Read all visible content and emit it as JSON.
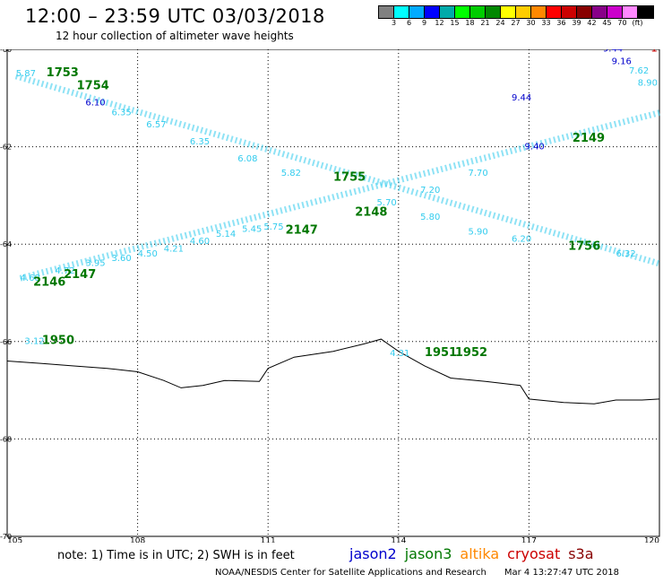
{
  "header": {
    "title": "12:00 – 23:59 UTC 03/03/2018",
    "subtitle": "12 hour collection of altimeter wave heights"
  },
  "legend": {
    "colors": [
      "#808080",
      "#00ffff",
      "#00aaff",
      "#0000ff",
      "#00aaaa",
      "#00ff00",
      "#00cc00",
      "#008800",
      "#ffff00",
      "#ffcc00",
      "#ff8800",
      "#ff0000",
      "#cc0000",
      "#880000",
      "#880088",
      "#cc00cc",
      "#ff88ff",
      "#000000"
    ],
    "labels": [
      "3",
      "6",
      "9",
      "12",
      "15",
      "18",
      "21",
      "24",
      "27",
      "30",
      "33",
      "36",
      "39",
      "42",
      "45",
      "70",
      "(ft)"
    ]
  },
  "map": {
    "lon_range": [
      105,
      120
    ],
    "lat_range": [
      -70,
      -60
    ],
    "x_ticks": [
      "105",
      "108",
      "111",
      "114",
      "117",
      "120"
    ],
    "y_ticks": [
      "-60",
      "-62",
      "-64",
      "-66",
      "-68",
      "-70"
    ],
    "grid": "dotted",
    "colors": {
      "cyan": "#33ccee",
      "green": "#007700",
      "blue": "#0000cc",
      "red": "#cc0000"
    },
    "coast": [
      [
        105,
        -66.4
      ],
      [
        105.8,
        -66.45
      ],
      [
        106.5,
        -66.5
      ],
      [
        107.3,
        -66.55
      ],
      [
        108,
        -66.62
      ],
      [
        108.6,
        -66.8
      ],
      [
        109,
        -66.95
      ],
      [
        109.5,
        -66.9
      ],
      [
        110,
        -66.8
      ],
      [
        110.8,
        -66.82
      ],
      [
        111,
        -66.55
      ],
      [
        111.6,
        -66.32
      ],
      [
        112.5,
        -66.2
      ],
      [
        113.2,
        -66.05
      ],
      [
        113.6,
        -65.95
      ],
      [
        114,
        -66.2
      ],
      [
        114.6,
        -66.5
      ],
      [
        115.2,
        -66.75
      ],
      [
        116,
        -66.82
      ],
      [
        116.8,
        -66.9
      ],
      [
        117,
        -67.18
      ],
      [
        117.8,
        -67.25
      ],
      [
        118.5,
        -67.28
      ],
      [
        119,
        -67.2
      ],
      [
        119.6,
        -67.2
      ],
      [
        120,
        -67.18
      ]
    ],
    "tracks": [
      {
        "color": "cyan",
        "from": [
          105.2,
          -60.55
        ],
        "to": [
          120,
          -64.4
        ]
      },
      {
        "color": "cyan",
        "from": [
          105.3,
          -64.7
        ],
        "to": [
          120,
          -61.3
        ]
      }
    ],
    "labels": [
      {
        "text": "5.87",
        "lon": 105.2,
        "lat": -60.55,
        "color": "cyan",
        "size": 10
      },
      {
        "text": "1753",
        "lon": 105.9,
        "lat": -60.55,
        "color": "green",
        "size": 13
      },
      {
        "text": "1754",
        "lon": 106.6,
        "lat": -60.82,
        "color": "green",
        "size": 13
      },
      {
        "text": "9.44",
        "lon": 116.6,
        "lat": -61.05,
        "color": "blue",
        "size": 10
      },
      {
        "text": "6.10",
        "lon": 106.8,
        "lat": -61.15,
        "color": "blue",
        "size": 10
      },
      {
        "text": "6.35",
        "lon": 107.4,
        "lat": -61.35,
        "color": "cyan",
        "size": 10
      },
      {
        "text": "6.57",
        "lon": 108.2,
        "lat": -61.6,
        "color": "cyan",
        "size": 10
      },
      {
        "text": "6.35",
        "lon": 109.2,
        "lat": -61.95,
        "color": "cyan",
        "size": 10
      },
      {
        "text": "6.08",
        "lon": 110.3,
        "lat": -62.3,
        "color": "cyan",
        "size": 10
      },
      {
        "text": "5.82",
        "lon": 111.3,
        "lat": -62.6,
        "color": "cyan",
        "size": 10
      },
      {
        "text": "1755",
        "lon": 112.5,
        "lat": -62.7,
        "color": "green",
        "size": 13
      },
      {
        "text": "5.70",
        "lon": 113.5,
        "lat": -63.2,
        "color": "cyan",
        "size": 10
      },
      {
        "text": "5.80",
        "lon": 114.5,
        "lat": -63.5,
        "color": "cyan",
        "size": 10
      },
      {
        "text": "5.90",
        "lon": 115.6,
        "lat": -63.8,
        "color": "cyan",
        "size": 10
      },
      {
        "text": "6.20",
        "lon": 116.6,
        "lat": -63.95,
        "color": "cyan",
        "size": 10
      },
      {
        "text": "1756",
        "lon": 117.9,
        "lat": -64.12,
        "color": "green",
        "size": 13
      },
      {
        "text": "6.32",
        "lon": 119.0,
        "lat": -64.25,
        "color": "cyan",
        "size": 10
      },
      {
        "text": "4.68",
        "lon": 105.3,
        "lat": -64.75,
        "color": "cyan",
        "size": 10
      },
      {
        "text": "2146",
        "lon": 105.6,
        "lat": -64.85,
        "color": "green",
        "size": 13
      },
      {
        "text": "4.72",
        "lon": 106.1,
        "lat": -64.6,
        "color": "cyan",
        "size": 10
      },
      {
        "text": "2147",
        "lon": 106.3,
        "lat": -64.7,
        "color": "green",
        "size": 13
      },
      {
        "text": "3.95",
        "lon": 106.8,
        "lat": -64.45,
        "color": "cyan",
        "size": 10
      },
      {
        "text": "3.60",
        "lon": 107.4,
        "lat": -64.35,
        "color": "cyan",
        "size": 10
      },
      {
        "text": "4.50",
        "lon": 108.0,
        "lat": -64.25,
        "color": "cyan",
        "size": 10
      },
      {
        "text": "4.21",
        "lon": 108.6,
        "lat": -64.15,
        "color": "cyan",
        "size": 10
      },
      {
        "text": "4.60",
        "lon": 109.2,
        "lat": -64.0,
        "color": "cyan",
        "size": 10
      },
      {
        "text": "5.14",
        "lon": 109.8,
        "lat": -63.85,
        "color": "cyan",
        "size": 10
      },
      {
        "text": "5.45",
        "lon": 110.4,
        "lat": -63.75,
        "color": "cyan",
        "size": 10
      },
      {
        "text": "5.75",
        "lon": 110.9,
        "lat": -63.7,
        "color": "cyan",
        "size": 10
      },
      {
        "text": "2147",
        "lon": 111.4,
        "lat": -63.78,
        "color": "green",
        "size": 13
      },
      {
        "text": "2148",
        "lon": 113.0,
        "lat": -63.42,
        "color": "green",
        "size": 13
      },
      {
        "text": "7.20",
        "lon": 114.5,
        "lat": -62.95,
        "color": "cyan",
        "size": 10
      },
      {
        "text": "7.70",
        "lon": 115.6,
        "lat": -62.6,
        "color": "cyan",
        "size": 10
      },
      {
        "text": "9.40",
        "lon": 116.9,
        "lat": -62.05,
        "color": "blue",
        "size": 10
      },
      {
        "text": "2149",
        "lon": 118.0,
        "lat": -61.9,
        "color": "green",
        "size": 13
      },
      {
        "text": "9.16",
        "lon": 118.9,
        "lat": -60.3,
        "color": "blue",
        "size": 10
      },
      {
        "text": "7.62",
        "lon": 119.3,
        "lat": -60.5,
        "color": "cyan",
        "size": 10
      },
      {
        "text": "8.90",
        "lon": 119.5,
        "lat": -60.75,
        "color": "cyan",
        "size": 10
      },
      {
        "text": "9.44",
        "lon": 118.7,
        "lat": -60.05,
        "color": "blue",
        "size": 10
      },
      {
        "text": "1",
        "lon": 119.8,
        "lat": -60.05,
        "color": "red",
        "size": 12
      },
      {
        "text": "3.12",
        "lon": 105.4,
        "lat": -66.05,
        "color": "cyan",
        "size": 10
      },
      {
        "text": "1950",
        "lon": 105.8,
        "lat": -66.05,
        "color": "green",
        "size": 13
      },
      {
        "text": "4.31",
        "lon": 113.8,
        "lat": -66.3,
        "color": "cyan",
        "size": 10
      },
      {
        "text": "1951",
        "lon": 114.6,
        "lat": -66.3,
        "color": "green",
        "size": 13
      },
      {
        "text": "1952",
        "lon": 115.3,
        "lat": -66.3,
        "color": "green",
        "size": 13
      }
    ]
  },
  "footer": {
    "note": "note: 1) Time is in UTC; 2) SWH is in feet",
    "satellites": [
      {
        "name": "jason2",
        "color": "#0000cc"
      },
      {
        "name": "jason3",
        "color": "#007700"
      },
      {
        "name": "altika",
        "color": "#ff8800"
      },
      {
        "name": "cryosat",
        "color": "#cc0000"
      },
      {
        "name": "s3a",
        "color": "#880000"
      }
    ],
    "credit": "NOAA/NESDIS Center for Satellite Applications and Research",
    "timestamp": "Mar  4 13:27:47 UTC 2018"
  }
}
